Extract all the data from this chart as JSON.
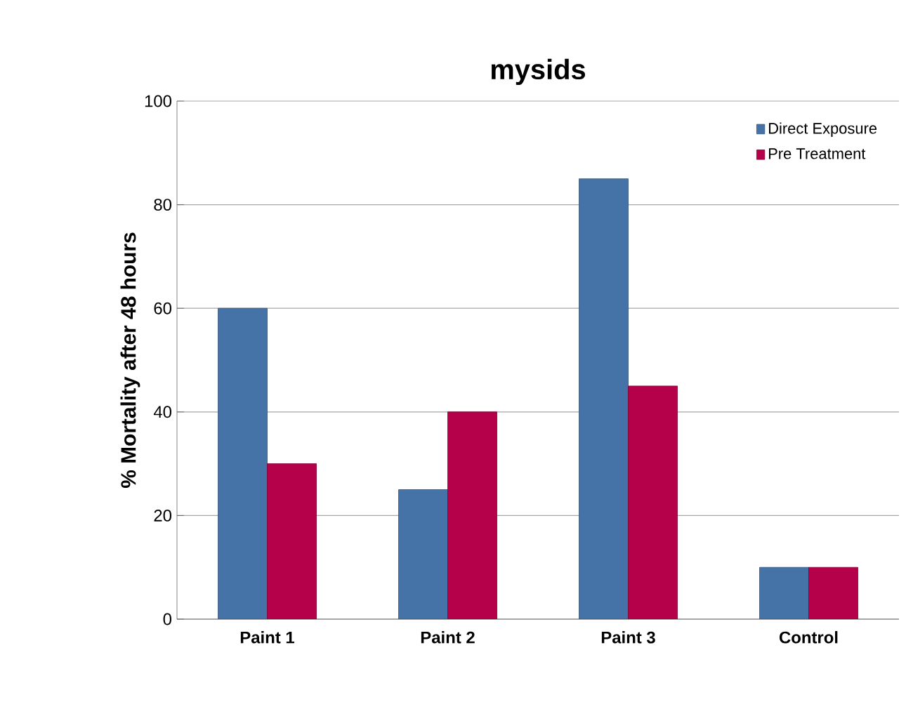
{
  "chart_data": {
    "type": "bar",
    "title": "mysids",
    "ylabel": "% Mortality after 48 hours",
    "categories": [
      "Paint 1",
      "Paint 2",
      "Paint 3",
      "Control"
    ],
    "series": [
      {
        "name": "Direct Exposure",
        "color": "#4572a7",
        "values": [
          60,
          25,
          85,
          10
        ]
      },
      {
        "name": "Pre Treatment",
        "color": "#b5004a",
        "values": [
          30,
          40,
          45,
          10
        ]
      }
    ],
    "ylim": [
      0,
      100
    ],
    "yticks": [
      0,
      20,
      40,
      60,
      80,
      100
    ],
    "grid": "y",
    "legend": "top right"
  }
}
